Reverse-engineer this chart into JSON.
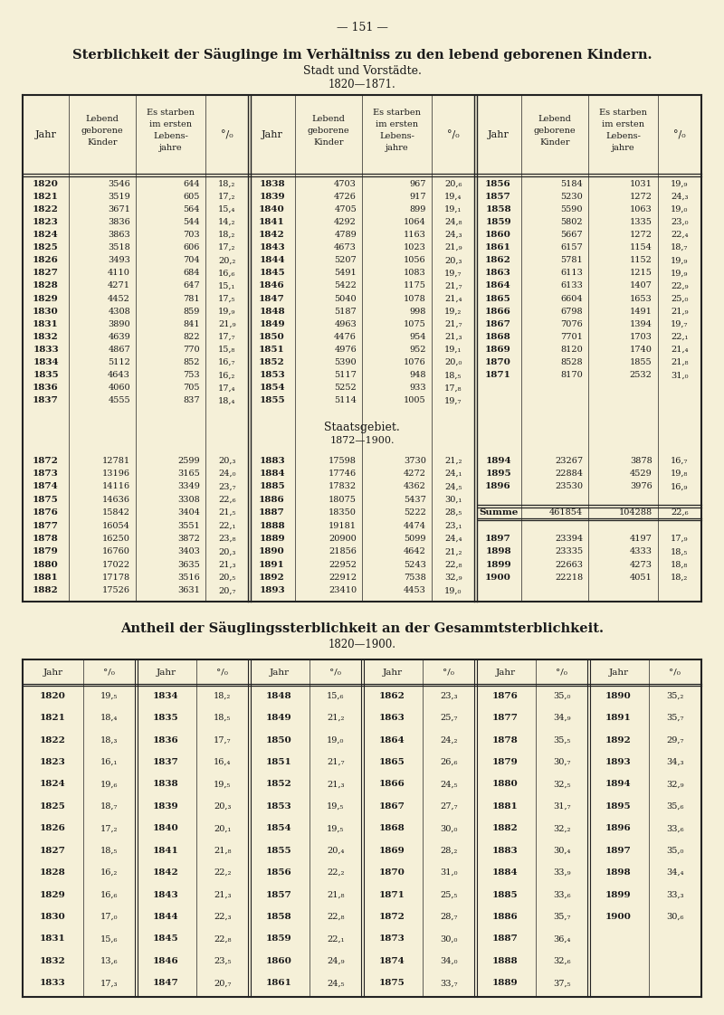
{
  "page_number": "— 151 —",
  "title1": "Sterblichkeit der Säuglinge im Verhältniss zu den lebend geborenen Kindern.",
  "subtitle1a": "Stadt und Vorstädte.",
  "subtitle1b": "1820—1871.",
  "staatsgebiet_title": "Staatsgebiet.",
  "staatsgebiet_subtitle": "1872—1900.",
  "table1_rows": [
    [
      "1820",
      "3546",
      "644",
      "18,₂",
      "1838",
      "4703",
      "967",
      "20,₆",
      "1856",
      "5184",
      "1031",
      "19,₉"
    ],
    [
      "1821",
      "3519",
      "605",
      "17,₂",
      "1839",
      "4726",
      "917",
      "19,₄",
      "1857",
      "5230",
      "1272",
      "24,₃"
    ],
    [
      "1822",
      "3671",
      "564",
      "15,₄",
      "1840",
      "4705",
      "899",
      "19,₁",
      "1858",
      "5590",
      "1063",
      "19,₀"
    ],
    [
      "1823",
      "3836",
      "544",
      "14,₂",
      "1841",
      "4292",
      "1064",
      "24,₈",
      "1859",
      "5802",
      "1335",
      "23,₀"
    ],
    [
      "1824",
      "3863",
      "703",
      "18,₂",
      "1842",
      "4789",
      "1163",
      "24,₃",
      "1860",
      "5667",
      "1272",
      "22,₄"
    ],
    [
      "1825",
      "3518",
      "606",
      "17,₂",
      "1843",
      "4673",
      "1023",
      "21,₉",
      "1861",
      "6157",
      "1154",
      "18,₇"
    ],
    [
      "1826",
      "3493",
      "704",
      "20,₂",
      "1844",
      "5207",
      "1056",
      "20,₃",
      "1862",
      "5781",
      "1152",
      "19,₉"
    ],
    [
      "1827",
      "4110",
      "684",
      "16,₆",
      "1845",
      "5491",
      "1083",
      "19,₇",
      "1863",
      "6113",
      "1215",
      "19,₉"
    ],
    [
      "1828",
      "4271",
      "647",
      "15,₁",
      "1846",
      "5422",
      "1175",
      "21,₇",
      "1864",
      "6133",
      "1407",
      "22,₉"
    ],
    [
      "1829",
      "4452",
      "781",
      "17,₅",
      "1847",
      "5040",
      "1078",
      "21,₄",
      "1865",
      "6604",
      "1653",
      "25,₀"
    ],
    [
      "1830",
      "4308",
      "859",
      "19,₉",
      "1848",
      "5187",
      "998",
      "19,₂",
      "1866",
      "6798",
      "1491",
      "21,₉"
    ],
    [
      "1831",
      "3890",
      "841",
      "21,₉",
      "1849",
      "4963",
      "1075",
      "21,₇",
      "1867",
      "7076",
      "1394",
      "19,₇"
    ],
    [
      "1832",
      "4639",
      "822",
      "17,₇",
      "1850",
      "4476",
      "954",
      "21,₃",
      "1868",
      "7701",
      "1703",
      "22,₁"
    ],
    [
      "1833",
      "4867",
      "770",
      "15,₈",
      "1851",
      "4976",
      "952",
      "19,₁",
      "1869",
      "8120",
      "1740",
      "21,₄"
    ],
    [
      "1834",
      "5112",
      "852",
      "16,₇",
      "1852",
      "5390",
      "1076",
      "20,₀",
      "1870",
      "8528",
      "1855",
      "21,₈"
    ],
    [
      "1835",
      "4643",
      "753",
      "16,₂",
      "1853",
      "5117",
      "948",
      "18,₅",
      "1871",
      "8170",
      "2532",
      "31,₀"
    ],
    [
      "1836",
      "4060",
      "705",
      "17,₄",
      "1854",
      "5252",
      "933",
      "17,₈",
      "",
      "",
      "",
      ""
    ],
    [
      "1837",
      "4555",
      "837",
      "18,₄",
      "1855",
      "5114",
      "1005",
      "19,₇",
      "",
      "",
      "",
      ""
    ]
  ],
  "table2_rows": [
    [
      "1872",
      "12781",
      "2599",
      "20,₃",
      "1883",
      "17598",
      "3730",
      "21,₂",
      "1894",
      "23267",
      "3878",
      "16,₇"
    ],
    [
      "1873",
      "13196",
      "3165",
      "24,₀",
      "1884",
      "17746",
      "4272",
      "24,₁",
      "1895",
      "22884",
      "4529",
      "19,₈"
    ],
    [
      "1874",
      "14116",
      "3349",
      "23,₇",
      "1885",
      "17832",
      "4362",
      "24,₅",
      "1896",
      "23530",
      "3976",
      "16,₉"
    ],
    [
      "1875",
      "14636",
      "3308",
      "22,₆",
      "1886",
      "18075",
      "5437",
      "30,₁",
      "",
      "",
      "",
      ""
    ],
    [
      "1876",
      "15842",
      "3404",
      "21,₅",
      "1887",
      "18350",
      "5222",
      "28,₅",
      "Summe",
      "461854",
      "104288",
      "22,₆"
    ],
    [
      "1877",
      "16054",
      "3551",
      "22,₁",
      "1888",
      "19181",
      "4474",
      "23,₁",
      "",
      "",
      "",
      ""
    ],
    [
      "1878",
      "16250",
      "3872",
      "23,₈",
      "1889",
      "20900",
      "5099",
      "24,₄",
      "1897",
      "23394",
      "4197",
      "17,₉"
    ],
    [
      "1879",
      "16760",
      "3403",
      "20,₃",
      "1890",
      "21856",
      "4642",
      "21,₂",
      "1898",
      "23335",
      "4333",
      "18,₅"
    ],
    [
      "1880",
      "17022",
      "3635",
      "21,₃",
      "1891",
      "22952",
      "5243",
      "22,₈",
      "1899",
      "22663",
      "4273",
      "18,₈"
    ],
    [
      "1881",
      "17178",
      "3516",
      "20,₅",
      "1892",
      "22912",
      "7538",
      "32,₉",
      "1900",
      "22218",
      "4051",
      "18,₂"
    ],
    [
      "1882",
      "17526",
      "3631",
      "20,₇",
      "1893",
      "23410",
      "4453",
      "19,₀",
      "",
      "",
      "",
      ""
    ]
  ],
  "title2": "Antheil der Säuglingssterblichkeit an der Gesammtsterblichkeit.",
  "subtitle2": "1820—1900.",
  "table3_rows": [
    [
      "1820",
      "19,₅",
      "1834",
      "18,₂",
      "1848",
      "15,₆",
      "1862",
      "23,₃",
      "1876",
      "35,₀",
      "1890",
      "35,₂"
    ],
    [
      "1821",
      "18,₄",
      "1835",
      "18,₅",
      "1849",
      "21,₂",
      "1863",
      "25,₇",
      "1877",
      "34,₉",
      "1891",
      "35,₇"
    ],
    [
      "1822",
      "18,₃",
      "1836",
      "17,₇",
      "1850",
      "19,₀",
      "1864",
      "24,₂",
      "1878",
      "35,₅",
      "1892",
      "29,₇"
    ],
    [
      "1823",
      "16,₁",
      "1837",
      "16,₄",
      "1851",
      "21,₇",
      "1865",
      "26,₆",
      "1879",
      "30,₇",
      "1893",
      "34,₃"
    ],
    [
      "1824",
      "19,₆",
      "1838",
      "19,₅",
      "1852",
      "21,₃",
      "1866",
      "24,₅",
      "1880",
      "32,₅",
      "1894",
      "32,₉"
    ],
    [
      "1825",
      "18,₇",
      "1839",
      "20,₃",
      "1853",
      "19,₅",
      "1867",
      "27,₇",
      "1881",
      "31,₇",
      "1895",
      "35,₆"
    ],
    [
      "1826",
      "17,₂",
      "1840",
      "20,₁",
      "1854",
      "19,₅",
      "1868",
      "30,₀",
      "1882",
      "32,₂",
      "1896",
      "33,₆"
    ],
    [
      "1827",
      "18,₅",
      "1841",
      "21,₈",
      "1855",
      "20,₄",
      "1869",
      "28,₂",
      "1883",
      "30,₄",
      "1897",
      "35,₀"
    ],
    [
      "1828",
      "16,₂",
      "1842",
      "22,₂",
      "1856",
      "22,₂",
      "1870",
      "31,₀",
      "1884",
      "33,₉",
      "1898",
      "34,₄"
    ],
    [
      "1829",
      "16,₆",
      "1843",
      "21,₃",
      "1857",
      "21,₈",
      "1871",
      "25,₅",
      "1885",
      "33,₆",
      "1899",
      "33,₃"
    ],
    [
      "1830",
      "17,₀",
      "1844",
      "22,₃",
      "1858",
      "22,₈",
      "1872",
      "28,₇",
      "1886",
      "35,₇",
      "1900",
      "30,₆"
    ],
    [
      "1831",
      "15,₆",
      "1845",
      "22,₈",
      "1859",
      "22,₁",
      "1873",
      "30,₀",
      "1887",
      "36,₄",
      "",
      ""
    ],
    [
      "1832",
      "13,₆",
      "1846",
      "23,₅",
      "1860",
      "24,₉",
      "1874",
      "34,₀",
      "1888",
      "32,₆",
      "",
      ""
    ],
    [
      "1833",
      "17,₃",
      "1847",
      "20,₇",
      "1861",
      "24,₅",
      "1875",
      "33,₇",
      "1889",
      "37,₅",
      "",
      ""
    ]
  ],
  "bg_color": "#f5f0d8",
  "text_color": "#1a1a1a",
  "line_color": "#222222",
  "pct_symbol": "°/₀"
}
